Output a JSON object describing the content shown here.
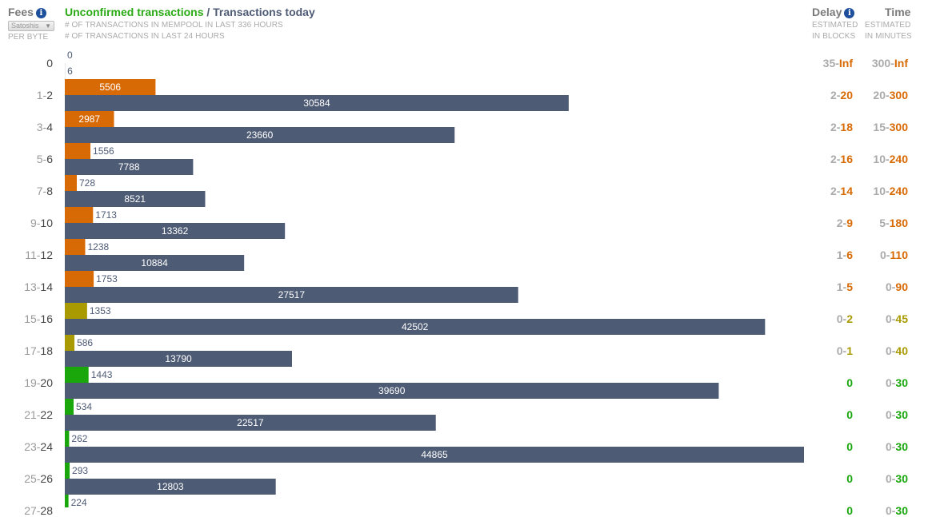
{
  "header": {
    "fees_title": "Fees",
    "unit_select": "Satoshis",
    "unit_sub": "PER BYTE",
    "title_unconfirmed": "Unconfirmed transactions",
    "title_sep": " / ",
    "title_today": "Transactions today",
    "sub_line1": "# OF TRANSACTIONS IN MEMPOOL IN LAST 336 HOURS",
    "sub_line2": "# OF TRANSACTIONS IN LAST 24 HOURS",
    "delay_title": "Delay",
    "delay_sub1": "ESTIMATED",
    "delay_sub2": "IN BLOCKS",
    "time_title": "Time",
    "time_sub1": "ESTIMATED",
    "time_sub2": "IN MINUTES"
  },
  "colors": {
    "orange": "#d86a05",
    "olive": "#a89a00",
    "green": "#1aa70b",
    "navy": "#4e5b75"
  },
  "chart_data": {
    "type": "bar",
    "orientation": "horizontal",
    "series": [
      {
        "name": "Unconfirmed transactions",
        "values": [
          0,
          5506,
          2987,
          1556,
          728,
          1713,
          1238,
          1753,
          1353,
          586,
          1443,
          534,
          262,
          293,
          224
        ]
      },
      {
        "name": "Transactions today",
        "values": [
          6,
          30584,
          23660,
          7788,
          8521,
          13362,
          10884,
          27517,
          42502,
          13790,
          39690,
          22517,
          44865,
          12803,
          null
        ]
      }
    ],
    "rows": [
      {
        "lo": "",
        "hi": "0",
        "delay_lo": "35",
        "delay_hi": "Inf",
        "time_lo": "300",
        "time_hi": "Inf",
        "color": "orange"
      },
      {
        "lo": "1",
        "hi": "2",
        "delay_lo": "2",
        "delay_hi": "20",
        "time_lo": "20",
        "time_hi": "300",
        "color": "orange"
      },
      {
        "lo": "3",
        "hi": "4",
        "delay_lo": "2",
        "delay_hi": "18",
        "time_lo": "15",
        "time_hi": "300",
        "color": "orange"
      },
      {
        "lo": "5",
        "hi": "6",
        "delay_lo": "2",
        "delay_hi": "16",
        "time_lo": "10",
        "time_hi": "240",
        "color": "orange"
      },
      {
        "lo": "7",
        "hi": "8",
        "delay_lo": "2",
        "delay_hi": "14",
        "time_lo": "10",
        "time_hi": "240",
        "color": "orange"
      },
      {
        "lo": "9",
        "hi": "10",
        "delay_lo": "2",
        "delay_hi": "9",
        "time_lo": "5",
        "time_hi": "180",
        "color": "orange"
      },
      {
        "lo": "11",
        "hi": "12",
        "delay_lo": "1",
        "delay_hi": "6",
        "time_lo": "0",
        "time_hi": "110",
        "color": "orange"
      },
      {
        "lo": "13",
        "hi": "14",
        "delay_lo": "1",
        "delay_hi": "5",
        "time_lo": "0",
        "time_hi": "90",
        "color": "orange"
      },
      {
        "lo": "15",
        "hi": "16",
        "delay_lo": "0",
        "delay_hi": "2",
        "time_lo": "0",
        "time_hi": "45",
        "color": "olive"
      },
      {
        "lo": "17",
        "hi": "18",
        "delay_lo": "0",
        "delay_hi": "1",
        "time_lo": "0",
        "time_hi": "40",
        "color": "olive"
      },
      {
        "lo": "19",
        "hi": "20",
        "delay_lo": "",
        "delay_hi": "0",
        "time_lo": "0",
        "time_hi": "30",
        "color": "green"
      },
      {
        "lo": "21",
        "hi": "22",
        "delay_lo": "",
        "delay_hi": "0",
        "time_lo": "0",
        "time_hi": "30",
        "color": "green"
      },
      {
        "lo": "23",
        "hi": "24",
        "delay_lo": "",
        "delay_hi": "0",
        "time_lo": "0",
        "time_hi": "30",
        "color": "green"
      },
      {
        "lo": "25",
        "hi": "26",
        "delay_lo": "",
        "delay_hi": "0",
        "time_lo": "0",
        "time_hi": "30",
        "color": "green"
      },
      {
        "lo": "27",
        "hi": "28",
        "delay_lo": "",
        "delay_hi": "0",
        "time_lo": "0",
        "time_hi": "30",
        "color": "green"
      }
    ]
  }
}
